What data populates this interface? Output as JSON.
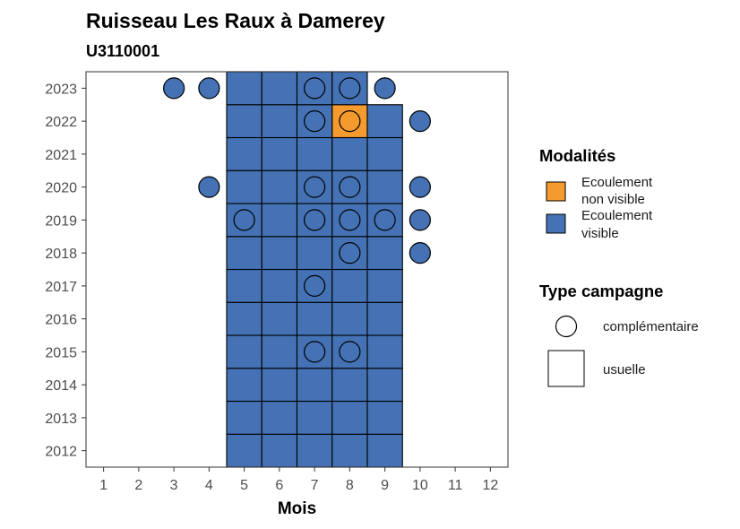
{
  "chart_data": {
    "type": "heatmap",
    "title": "Ruisseau Les Raux à Damerey",
    "subtitle": "U3110001",
    "xlabel": "Mois",
    "ylabel": "",
    "x_ticks": [
      1,
      2,
      3,
      4,
      5,
      6,
      7,
      8,
      9,
      10,
      11,
      12
    ],
    "y_ticks": [
      2012,
      2013,
      2014,
      2015,
      2016,
      2017,
      2018,
      2019,
      2020,
      2021,
      2022,
      2023
    ],
    "xlim": [
      0.5,
      12.5
    ],
    "ylim": [
      2011.5,
      2023.5
    ],
    "colors": {
      "ecoulement_visible": "#4472b4",
      "ecoulement_non_visible": "#f49a2f",
      "border": "#000000",
      "circle_fill_default": "#4472b4"
    },
    "tiles": [
      {
        "year": 2012,
        "month": 5,
        "mod": "visible"
      },
      {
        "year": 2012,
        "month": 6,
        "mod": "visible"
      },
      {
        "year": 2012,
        "month": 7,
        "mod": "visible"
      },
      {
        "year": 2012,
        "month": 8,
        "mod": "visible"
      },
      {
        "year": 2012,
        "month": 9,
        "mod": "visible"
      },
      {
        "year": 2013,
        "month": 5,
        "mod": "visible"
      },
      {
        "year": 2013,
        "month": 6,
        "mod": "visible"
      },
      {
        "year": 2013,
        "month": 7,
        "mod": "visible"
      },
      {
        "year": 2013,
        "month": 8,
        "mod": "visible"
      },
      {
        "year": 2013,
        "month": 9,
        "mod": "visible"
      },
      {
        "year": 2014,
        "month": 5,
        "mod": "visible"
      },
      {
        "year": 2014,
        "month": 6,
        "mod": "visible"
      },
      {
        "year": 2014,
        "month": 7,
        "mod": "visible"
      },
      {
        "year": 2014,
        "month": 8,
        "mod": "visible"
      },
      {
        "year": 2014,
        "month": 9,
        "mod": "visible"
      },
      {
        "year": 2015,
        "month": 5,
        "mod": "visible"
      },
      {
        "year": 2015,
        "month": 6,
        "mod": "visible"
      },
      {
        "year": 2015,
        "month": 7,
        "mod": "visible"
      },
      {
        "year": 2015,
        "month": 8,
        "mod": "visible"
      },
      {
        "year": 2015,
        "month": 9,
        "mod": "visible"
      },
      {
        "year": 2016,
        "month": 5,
        "mod": "visible"
      },
      {
        "year": 2016,
        "month": 6,
        "mod": "visible"
      },
      {
        "year": 2016,
        "month": 7,
        "mod": "visible"
      },
      {
        "year": 2016,
        "month": 8,
        "mod": "visible"
      },
      {
        "year": 2016,
        "month": 9,
        "mod": "visible"
      },
      {
        "year": 2017,
        "month": 5,
        "mod": "visible"
      },
      {
        "year": 2017,
        "month": 6,
        "mod": "visible"
      },
      {
        "year": 2017,
        "month": 7,
        "mod": "visible"
      },
      {
        "year": 2017,
        "month": 8,
        "mod": "visible"
      },
      {
        "year": 2017,
        "month": 9,
        "mod": "visible"
      },
      {
        "year": 2018,
        "month": 5,
        "mod": "visible"
      },
      {
        "year": 2018,
        "month": 6,
        "mod": "visible"
      },
      {
        "year": 2018,
        "month": 7,
        "mod": "visible"
      },
      {
        "year": 2018,
        "month": 8,
        "mod": "visible"
      },
      {
        "year": 2018,
        "month": 9,
        "mod": "visible"
      },
      {
        "year": 2019,
        "month": 5,
        "mod": "visible"
      },
      {
        "year": 2019,
        "month": 6,
        "mod": "visible"
      },
      {
        "year": 2019,
        "month": 7,
        "mod": "visible"
      },
      {
        "year": 2019,
        "month": 8,
        "mod": "visible"
      },
      {
        "year": 2019,
        "month": 9,
        "mod": "visible"
      },
      {
        "year": 2020,
        "month": 5,
        "mod": "visible"
      },
      {
        "year": 2020,
        "month": 6,
        "mod": "visible"
      },
      {
        "year": 2020,
        "month": 7,
        "mod": "visible"
      },
      {
        "year": 2020,
        "month": 8,
        "mod": "visible"
      },
      {
        "year": 2020,
        "month": 9,
        "mod": "visible"
      },
      {
        "year": 2021,
        "month": 5,
        "mod": "visible"
      },
      {
        "year": 2021,
        "month": 6,
        "mod": "visible"
      },
      {
        "year": 2021,
        "month": 7,
        "mod": "visible"
      },
      {
        "year": 2021,
        "month": 8,
        "mod": "visible"
      },
      {
        "year": 2021,
        "month": 9,
        "mod": "visible"
      },
      {
        "year": 2022,
        "month": 5,
        "mod": "visible"
      },
      {
        "year": 2022,
        "month": 6,
        "mod": "visible"
      },
      {
        "year": 2022,
        "month": 7,
        "mod": "visible"
      },
      {
        "year": 2022,
        "month": 8,
        "mod": "non_visible"
      },
      {
        "year": 2022,
        "month": 9,
        "mod": "visible"
      },
      {
        "year": 2023,
        "month": 5,
        "mod": "visible"
      },
      {
        "year": 2023,
        "month": 6,
        "mod": "visible"
      },
      {
        "year": 2023,
        "month": 7,
        "mod": "visible"
      },
      {
        "year": 2023,
        "month": 8,
        "mod": "visible"
      }
    ],
    "points": [
      {
        "year": 2023,
        "month": 3
      },
      {
        "year": 2023,
        "month": 4
      },
      {
        "year": 2023,
        "month": 7
      },
      {
        "year": 2023,
        "month": 8
      },
      {
        "year": 2023,
        "month": 9
      },
      {
        "year": 2022,
        "month": 7
      },
      {
        "year": 2022,
        "month": 8
      },
      {
        "year": 2022,
        "month": 10
      },
      {
        "year": 2020,
        "month": 4
      },
      {
        "year": 2020,
        "month": 7
      },
      {
        "year": 2020,
        "month": 8
      },
      {
        "year": 2020,
        "month": 10
      },
      {
        "year": 2019,
        "month": 5
      },
      {
        "year": 2019,
        "month": 7
      },
      {
        "year": 2019,
        "month": 8
      },
      {
        "year": 2019,
        "month": 9
      },
      {
        "year": 2019,
        "month": 10
      },
      {
        "year": 2018,
        "month": 8
      },
      {
        "year": 2018,
        "month": 10
      },
      {
        "year": 2017,
        "month": 7
      },
      {
        "year": 2015,
        "month": 7
      },
      {
        "year": 2015,
        "month": 8
      }
    ],
    "legend": {
      "placement": "right",
      "modalites": {
        "title": "Modalités",
        "items": [
          {
            "line1": "Ecoulement",
            "line2": "non visible",
            "color": "#f49a2f"
          },
          {
            "line1": "Ecoulement",
            "line2": "visible",
            "color": "#4472b4"
          }
        ]
      },
      "type_campagne": {
        "title": "Type campagne",
        "items": [
          {
            "label": "complémentaire",
            "shape": "circle"
          },
          {
            "label": "usuelle",
            "shape": "square"
          }
        ]
      }
    },
    "grid": false
  }
}
